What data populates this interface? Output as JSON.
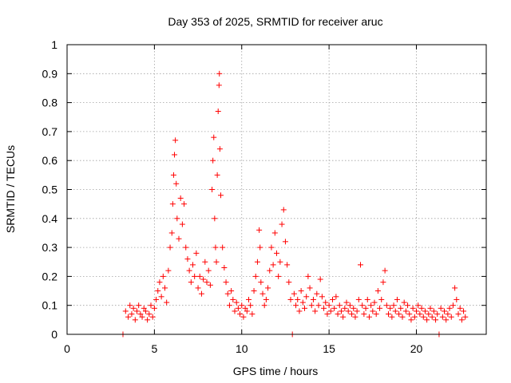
{
  "chart_data": {
    "type": "scatter",
    "title": "Day 353 of 2025, SRMTID for receiver aruc",
    "xlabel": "GPS time / hours",
    "ylabel": "SRMTID / TECUs",
    "xlim": [
      0,
      24
    ],
    "ylim": [
      0,
      1
    ],
    "xticks": [
      0,
      5,
      10,
      15,
      20
    ],
    "yticks": [
      0,
      0.1,
      0.2,
      0.3,
      0.4,
      0.5,
      0.6,
      0.7,
      0.8,
      0.9,
      1
    ],
    "grid": true,
    "marker": "+",
    "color": "#ff0000",
    "series": [
      {
        "name": "SRMTID",
        "points": [
          [
            3.2,
            0.0
          ],
          [
            3.35,
            0.08
          ],
          [
            3.5,
            0.06
          ],
          [
            3.6,
            0.1
          ],
          [
            3.7,
            0.07
          ],
          [
            3.8,
            0.09
          ],
          [
            3.9,
            0.05
          ],
          [
            4.0,
            0.08
          ],
          [
            4.1,
            0.1
          ],
          [
            4.2,
            0.07
          ],
          [
            4.3,
            0.06
          ],
          [
            4.4,
            0.09
          ],
          [
            4.5,
            0.08
          ],
          [
            4.6,
            0.05
          ],
          [
            4.7,
            0.07
          ],
          [
            4.8,
            0.1
          ],
          [
            4.9,
            0.06
          ],
          [
            5.0,
            0.09
          ],
          [
            5.1,
            0.12
          ],
          [
            5.2,
            0.15
          ],
          [
            5.3,
            0.18
          ],
          [
            5.4,
            0.13
          ],
          [
            5.5,
            0.2
          ],
          [
            5.6,
            0.16
          ],
          [
            5.7,
            0.11
          ],
          [
            5.8,
            0.22
          ],
          [
            5.9,
            0.3
          ],
          [
            6.0,
            0.35
          ],
          [
            6.05,
            0.45
          ],
          [
            6.1,
            0.55
          ],
          [
            6.15,
            0.62
          ],
          [
            6.2,
            0.67
          ],
          [
            6.25,
            0.52
          ],
          [
            6.3,
            0.4
          ],
          [
            6.4,
            0.33
          ],
          [
            6.5,
            0.47
          ],
          [
            6.6,
            0.38
          ],
          [
            6.7,
            0.45
          ],
          [
            6.8,
            0.3
          ],
          [
            6.9,
            0.26
          ],
          [
            7.0,
            0.22
          ],
          [
            7.1,
            0.18
          ],
          [
            7.2,
            0.24
          ],
          [
            7.3,
            0.2
          ],
          [
            7.4,
            0.28
          ],
          [
            7.5,
            0.16
          ],
          [
            7.6,
            0.2
          ],
          [
            7.7,
            0.14
          ],
          [
            7.8,
            0.19
          ],
          [
            7.9,
            0.25
          ],
          [
            8.0,
            0.18
          ],
          [
            8.1,
            0.22
          ],
          [
            8.2,
            0.17
          ],
          [
            8.3,
            0.5
          ],
          [
            8.35,
            0.6
          ],
          [
            8.4,
            0.68
          ],
          [
            8.45,
            0.4
          ],
          [
            8.5,
            0.3
          ],
          [
            8.55,
            0.25
          ],
          [
            8.6,
            0.55
          ],
          [
            8.65,
            0.77
          ],
          [
            8.7,
            0.86
          ],
          [
            8.72,
            0.9
          ],
          [
            8.75,
            0.64
          ],
          [
            8.8,
            0.48
          ],
          [
            8.9,
            0.3
          ],
          [
            9.0,
            0.23
          ],
          [
            9.1,
            0.18
          ],
          [
            9.2,
            0.14
          ],
          [
            9.3,
            0.1
          ],
          [
            9.4,
            0.15
          ],
          [
            9.5,
            0.12
          ],
          [
            9.6,
            0.08
          ],
          [
            9.7,
            0.11
          ],
          [
            9.8,
            0.09
          ],
          [
            9.9,
            0.07
          ],
          [
            10.0,
            0.1
          ],
          [
            10.1,
            0.06
          ],
          [
            10.2,
            0.09
          ],
          [
            10.3,
            0.08
          ],
          [
            10.4,
            0.12
          ],
          [
            10.5,
            0.1
          ],
          [
            10.6,
            0.07
          ],
          [
            10.7,
            0.15
          ],
          [
            10.8,
            0.2
          ],
          [
            10.9,
            0.25
          ],
          [
            11.0,
            0.36
          ],
          [
            11.05,
            0.3
          ],
          [
            11.1,
            0.18
          ],
          [
            11.2,
            0.14
          ],
          [
            11.3,
            0.1
          ],
          [
            11.4,
            0.12
          ],
          [
            11.5,
            0.16
          ],
          [
            11.6,
            0.22
          ],
          [
            11.7,
            0.3
          ],
          [
            11.8,
            0.24
          ],
          [
            11.9,
            0.35
          ],
          [
            12.0,
            0.28
          ],
          [
            12.1,
            0.2
          ],
          [
            12.2,
            0.25
          ],
          [
            12.3,
            0.38
          ],
          [
            12.4,
            0.43
          ],
          [
            12.5,
            0.32
          ],
          [
            12.6,
            0.24
          ],
          [
            12.7,
            0.18
          ],
          [
            12.8,
            0.12
          ],
          [
            12.9,
            0.0
          ],
          [
            13.0,
            0.14
          ],
          [
            13.1,
            0.1
          ],
          [
            13.2,
            0.12
          ],
          [
            13.3,
            0.08
          ],
          [
            13.4,
            0.15
          ],
          [
            13.5,
            0.11
          ],
          [
            13.6,
            0.09
          ],
          [
            13.7,
            0.13
          ],
          [
            13.8,
            0.2
          ],
          [
            13.9,
            0.16
          ],
          [
            14.0,
            0.1
          ],
          [
            14.1,
            0.12
          ],
          [
            14.2,
            0.08
          ],
          [
            14.3,
            0.14
          ],
          [
            14.4,
            0.1
          ],
          [
            14.5,
            0.19
          ],
          [
            14.6,
            0.13
          ],
          [
            14.7,
            0.09
          ],
          [
            14.8,
            0.11
          ],
          [
            14.9,
            0.07
          ],
          [
            15.0,
            0.1
          ],
          [
            15.1,
            0.08
          ],
          [
            15.2,
            0.12
          ],
          [
            15.3,
            0.09
          ],
          [
            15.4,
            0.13
          ],
          [
            15.5,
            0.07
          ],
          [
            15.6,
            0.1
          ],
          [
            15.7,
            0.08
          ],
          [
            15.8,
            0.06
          ],
          [
            15.9,
            0.09
          ],
          [
            16.0,
            0.11
          ],
          [
            16.1,
            0.08
          ],
          [
            16.2,
            0.1
          ],
          [
            16.3,
            0.07
          ],
          [
            16.4,
            0.09
          ],
          [
            16.5,
            0.06
          ],
          [
            16.6,
            0.08
          ],
          [
            16.7,
            0.12
          ],
          [
            16.8,
            0.24
          ],
          [
            16.9,
            0.1
          ],
          [
            17.0,
            0.07
          ],
          [
            17.1,
            0.09
          ],
          [
            17.2,
            0.12
          ],
          [
            17.3,
            0.06
          ],
          [
            17.4,
            0.1
          ],
          [
            17.5,
            0.08
          ],
          [
            17.6,
            0.11
          ],
          [
            17.7,
            0.07
          ],
          [
            17.8,
            0.15
          ],
          [
            17.9,
            0.09
          ],
          [
            18.0,
            0.12
          ],
          [
            18.1,
            0.18
          ],
          [
            18.2,
            0.22
          ],
          [
            18.3,
            0.1
          ],
          [
            18.4,
            0.07
          ],
          [
            18.5,
            0.09
          ],
          [
            18.6,
            0.06
          ],
          [
            18.7,
            0.1
          ],
          [
            18.8,
            0.08
          ],
          [
            18.9,
            0.12
          ],
          [
            19.0,
            0.07
          ],
          [
            19.1,
            0.09
          ],
          [
            19.2,
            0.06
          ],
          [
            19.3,
            0.11
          ],
          [
            19.4,
            0.08
          ],
          [
            19.5,
            0.1
          ],
          [
            19.6,
            0.07
          ],
          [
            19.7,
            0.05
          ],
          [
            19.8,
            0.09
          ],
          [
            19.9,
            0.06
          ],
          [
            20.0,
            0.08
          ],
          [
            20.1,
            0.1
          ],
          [
            20.2,
            0.07
          ],
          [
            20.3,
            0.09
          ],
          [
            20.4,
            0.06
          ],
          [
            20.5,
            0.08
          ],
          [
            20.6,
            0.05
          ],
          [
            20.7,
            0.07
          ],
          [
            20.8,
            0.09
          ],
          [
            20.9,
            0.06
          ],
          [
            21.0,
            0.08
          ],
          [
            21.1,
            0.05
          ],
          [
            21.2,
            0.07
          ],
          [
            21.3,
            0.0
          ],
          [
            21.4,
            0.09
          ],
          [
            21.5,
            0.06
          ],
          [
            21.6,
            0.08
          ],
          [
            21.7,
            0.05
          ],
          [
            21.8,
            0.07
          ],
          [
            21.9,
            0.09
          ],
          [
            22.0,
            0.06
          ],
          [
            22.1,
            0.1
          ],
          [
            22.2,
            0.16
          ],
          [
            22.3,
            0.12
          ],
          [
            22.4,
            0.07
          ],
          [
            22.5,
            0.09
          ],
          [
            22.6,
            0.05
          ],
          [
            22.7,
            0.08
          ],
          [
            22.8,
            0.06
          ]
        ]
      }
    ]
  }
}
